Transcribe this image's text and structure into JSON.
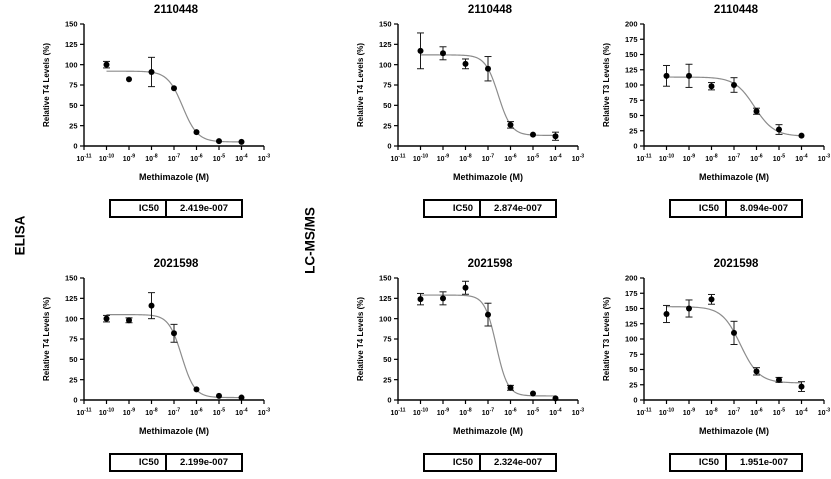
{
  "figure": {
    "row_labels": [
      {
        "text": "ELISA"
      },
      {
        "text": "LC-MS/MS"
      }
    ]
  },
  "colors": {
    "point": "#000000",
    "curve": "#8c8c8c",
    "error_bar": "#1a1a1a",
    "axis": "#000000",
    "text": "#000000",
    "table_border": "#000000",
    "background": "#ffffff"
  },
  "chart_data": [
    {
      "type": "scatter",
      "assay": "ELISA",
      "title": "2110448",
      "xlabel": "Methimazole (M)",
      "ylabel": "Relative T4 Levels (%)",
      "xscale": "log",
      "x_tick_exponents": [
        -11,
        -10,
        -9,
        -8,
        -7,
        -6,
        -5,
        -4,
        -3
      ],
      "ylim": [
        0,
        150
      ],
      "ytick_step": 25,
      "points": [
        {
          "x_exponent": -10,
          "y": 100,
          "err": 4
        },
        {
          "x_exponent": -9,
          "y": 82,
          "err": 0
        },
        {
          "x_exponent": -8,
          "y": 91,
          "err": 18
        },
        {
          "x_exponent": -7,
          "y": 71,
          "err": 0
        },
        {
          "x_exponent": -6,
          "y": 17,
          "err": 0
        },
        {
          "x_exponent": -5,
          "y": 6,
          "err": 0
        },
        {
          "x_exponent": -4,
          "y": 5,
          "err": 0
        }
      ],
      "fit_curve": {
        "top": 92,
        "bottom": 5,
        "hill_slope": 1.3,
        "ic50": 2.419e-07
      },
      "ic50": {
        "label": "IC50",
        "value": "2.419e-007"
      }
    },
    {
      "type": "scatter",
      "assay": "LC-MS/MS",
      "title": "2110448",
      "xlabel": "Methimazole (M)",
      "ylabel": "Relative T4 Levels (%)",
      "xscale": "log",
      "x_tick_exponents": [
        -11,
        -10,
        -9,
        -8,
        -7,
        -6,
        -5,
        -4,
        -3
      ],
      "ylim": [
        0,
        150
      ],
      "ytick_step": 25,
      "points": [
        {
          "x_exponent": -10,
          "y": 117,
          "err": 22
        },
        {
          "x_exponent": -9,
          "y": 114,
          "err": 8
        },
        {
          "x_exponent": -8,
          "y": 101,
          "err": 6
        },
        {
          "x_exponent": -7,
          "y": 95,
          "err": 15
        },
        {
          "x_exponent": -6,
          "y": 26,
          "err": 4
        },
        {
          "x_exponent": -5,
          "y": 14,
          "err": 0
        },
        {
          "x_exponent": -4,
          "y": 12,
          "err": 5
        }
      ],
      "fit_curve": {
        "top": 112,
        "bottom": 13,
        "hill_slope": 1.5,
        "ic50": 2.874e-07
      },
      "ic50": {
        "label": "IC50",
        "value": "2.874e-007"
      }
    },
    {
      "type": "scatter",
      "assay": "LC-MS/MS",
      "title": "2110448",
      "xlabel": "Methimazole (M)",
      "ylabel": "Relative T3 Levels (%)",
      "xscale": "log",
      "x_tick_exponents": [
        -11,
        -10,
        -9,
        -8,
        -7,
        -6,
        -5,
        -4,
        -3
      ],
      "ylim": [
        0,
        200
      ],
      "ytick_step": 25,
      "points": [
        {
          "x_exponent": -10,
          "y": 115,
          "err": 17
        },
        {
          "x_exponent": -9,
          "y": 115,
          "err": 19
        },
        {
          "x_exponent": -8,
          "y": 98,
          "err": 6
        },
        {
          "x_exponent": -7,
          "y": 100,
          "err": 12
        },
        {
          "x_exponent": -6,
          "y": 57,
          "err": 5
        },
        {
          "x_exponent": -5,
          "y": 27,
          "err": 8
        },
        {
          "x_exponent": -4,
          "y": 17,
          "err": 0
        }
      ],
      "fit_curve": {
        "top": 113,
        "bottom": 16,
        "hill_slope": 1.0,
        "ic50": 8.094e-07
      },
      "ic50": {
        "label": "IC50",
        "value": "8.094e-007"
      }
    },
    {
      "type": "scatter",
      "assay": "ELISA",
      "title": "2021598",
      "xlabel": "Methimazole (M)",
      "ylabel": "Relative T4 Levels (%)",
      "xscale": "log",
      "x_tick_exponents": [
        -11,
        -10,
        -9,
        -8,
        -7,
        -6,
        -5,
        -4,
        -3
      ],
      "ylim": [
        0,
        150
      ],
      "ytick_step": 25,
      "points": [
        {
          "x_exponent": -10,
          "y": 100,
          "err": 4
        },
        {
          "x_exponent": -9,
          "y": 98,
          "err": 3
        },
        {
          "x_exponent": -8,
          "y": 116,
          "err": 16
        },
        {
          "x_exponent": -7,
          "y": 82,
          "err": 11
        },
        {
          "x_exponent": -6,
          "y": 13,
          "err": 0
        },
        {
          "x_exponent": -5,
          "y": 5,
          "err": 0
        },
        {
          "x_exponent": -4,
          "y": 3,
          "err": 0
        }
      ],
      "fit_curve": {
        "top": 105,
        "bottom": 3,
        "hill_slope": 1.5,
        "ic50": 2.199e-07
      },
      "ic50": {
        "label": "IC50",
        "value": "2.199e-007"
      }
    },
    {
      "type": "scatter",
      "assay": "LC-MS/MS",
      "title": "2021598",
      "xlabel": "Methimazole (M)",
      "ylabel": "Relative T4 Levels (%)",
      "xscale": "log",
      "x_tick_exponents": [
        -11,
        -10,
        -9,
        -8,
        -7,
        -6,
        -5,
        -4,
        -3
      ],
      "ylim": [
        0,
        150
      ],
      "ytick_step": 25,
      "points": [
        {
          "x_exponent": -10,
          "y": 124,
          "err": 7
        },
        {
          "x_exponent": -9,
          "y": 125,
          "err": 8
        },
        {
          "x_exponent": -8,
          "y": 138,
          "err": 8
        },
        {
          "x_exponent": -7,
          "y": 105,
          "err": 14
        },
        {
          "x_exponent": -6,
          "y": 15,
          "err": 3
        },
        {
          "x_exponent": -5,
          "y": 8,
          "err": 0
        },
        {
          "x_exponent": -4,
          "y": 2,
          "err": 0
        }
      ],
      "fit_curve": {
        "top": 129,
        "bottom": 5,
        "hill_slope": 1.7,
        "ic50": 2.324e-07
      },
      "ic50": {
        "label": "IC50",
        "value": "2.324e-007"
      }
    },
    {
      "type": "scatter",
      "assay": "LC-MS/MS",
      "title": "2021598",
      "xlabel": "Methimazole (M)",
      "ylabel": "Relative T3 Levels (%)",
      "xscale": "log",
      "x_tick_exponents": [
        -11,
        -10,
        -9,
        -8,
        -7,
        -6,
        -5,
        -4,
        -3
      ],
      "ylim": [
        0,
        200
      ],
      "ytick_step": 25,
      "points": [
        {
          "x_exponent": -10,
          "y": 141,
          "err": 14
        },
        {
          "x_exponent": -9,
          "y": 150,
          "err": 14
        },
        {
          "x_exponent": -8,
          "y": 165,
          "err": 8
        },
        {
          "x_exponent": -7,
          "y": 110,
          "err": 19
        },
        {
          "x_exponent": -6,
          "y": 47,
          "err": 6
        },
        {
          "x_exponent": -5,
          "y": 33,
          "err": 4
        },
        {
          "x_exponent": -4,
          "y": 22,
          "err": 8
        }
      ],
      "fit_curve": {
        "top": 153,
        "bottom": 28,
        "hill_slope": 1.05,
        "ic50": 1.951e-07
      },
      "ic50": {
        "label": "IC50",
        "value": "1.951e-007"
      }
    }
  ]
}
